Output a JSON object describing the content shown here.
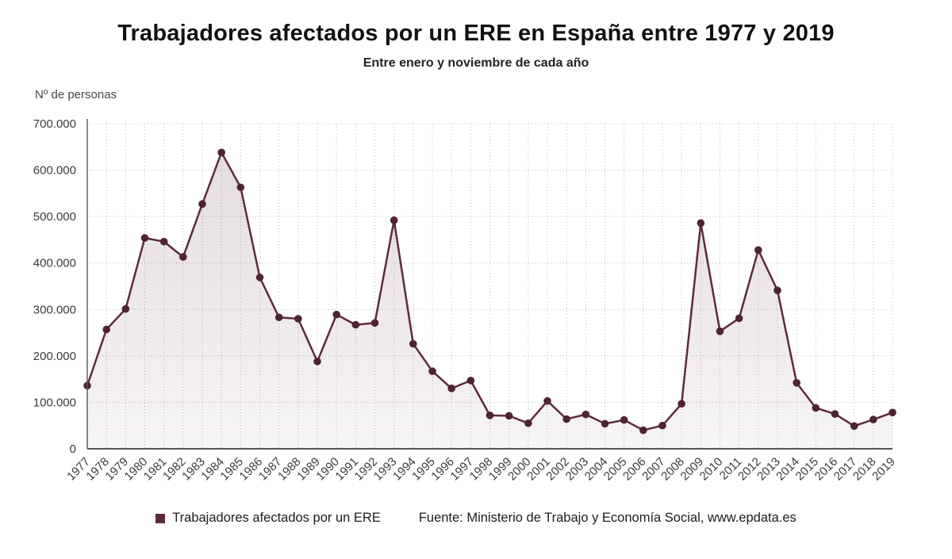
{
  "page": {
    "title": "Trabajadores afectados por un ERE en España entre 1977 y 2019",
    "subtitle": "Entre enero y noviembre de cada año",
    "y_axis_label": "Nº de personas",
    "legend_label": "Trabajadores afectados por un ERE",
    "source": "Fuente: Ministerio de Trabajo y Economía Social, www.epdata.es"
  },
  "colors": {
    "line": "#5e2a3c",
    "marker": "#4f2333",
    "fill_top": "rgba(94,42,60,0.16)",
    "fill_bottom": "rgba(94,42,60,0.05)",
    "grid": "#bcbcbc",
    "axis": "#555555",
    "tick_text": "#3a3a3a"
  },
  "chart_data": {
    "type": "area",
    "title": "Trabajadores afectados por un ERE en España entre 1977 y 2019",
    "subtitle": "Entre enero y noviembre de cada año",
    "ylabel": "Nº de personas",
    "xlabel": "",
    "grid": true,
    "legend_position": "bottom",
    "ylim": [
      0,
      700000
    ],
    "ytick_step": 100000,
    "x": [
      1977,
      1978,
      1979,
      1980,
      1981,
      1982,
      1983,
      1984,
      1985,
      1986,
      1987,
      1988,
      1989,
      1990,
      1991,
      1992,
      1993,
      1994,
      1995,
      1996,
      1997,
      1998,
      1999,
      2000,
      2001,
      2002,
      2003,
      2004,
      2005,
      2006,
      2007,
      2008,
      2009,
      2010,
      2011,
      2012,
      2013,
      2014,
      2015,
      2016,
      2017,
      2018,
      2019
    ],
    "series": [
      {
        "name": "Trabajadores afectados por un ERE",
        "values": [
          136000,
          257000,
          301000,
          454000,
          446000,
          413000,
          527000,
          638000,
          563000,
          369000,
          283000,
          280000,
          188000,
          289000,
          267000,
          271000,
          492000,
          226000,
          167000,
          130000,
          147000,
          72000,
          71000,
          55000,
          103000,
          64000,
          74000,
          54000,
          62000,
          40000,
          50000,
          97000,
          486000,
          253000,
          281000,
          428000,
          341000,
          142000,
          88000,
          75000,
          49000,
          63000,
          78000
        ]
      }
    ]
  }
}
